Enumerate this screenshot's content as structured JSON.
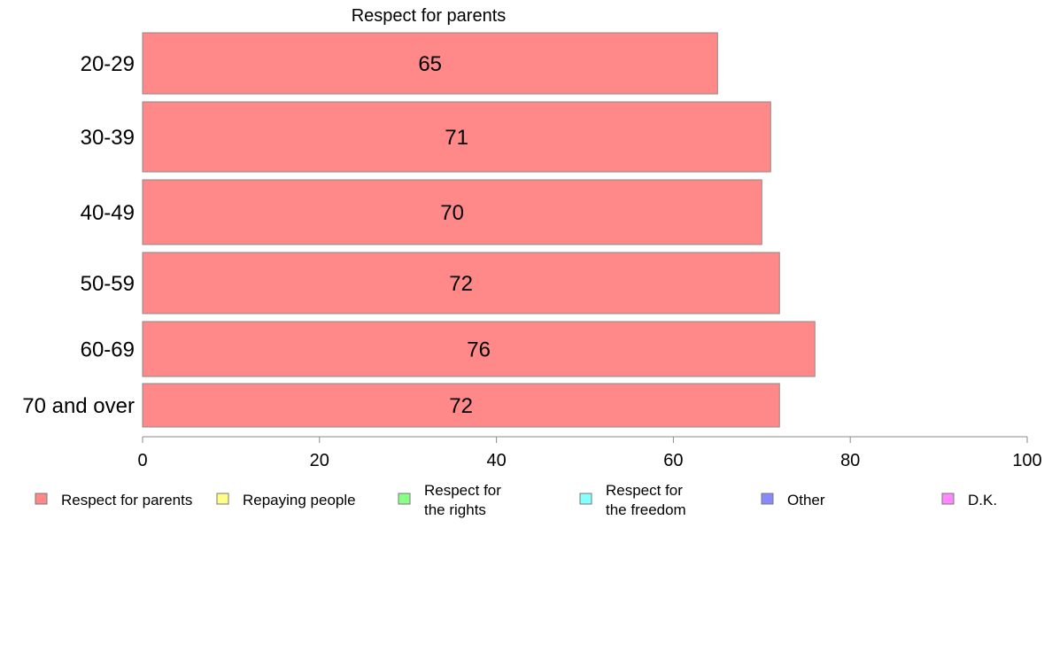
{
  "chart_data": {
    "type": "bar",
    "orientation": "horizontal",
    "title": "Respect for parents",
    "categories": [
      "20-29",
      "30-39",
      "40-49",
      "50-59",
      "60-69",
      "70 and over"
    ],
    "series": [
      {
        "name": "Respect for parents",
        "values": [
          65,
          71,
          70,
          72,
          76,
          72
        ],
        "color": "#ff8888"
      }
    ],
    "xlim": [
      0,
      100
    ],
    "xticks": [
      "0",
      "20",
      "40",
      "60",
      "80",
      "100"
    ],
    "grid": false,
    "legend": {
      "placement": "bottom",
      "entries": [
        {
          "label": [
            "Respect for parents"
          ],
          "color": "#ff8888"
        },
        {
          "label": [
            "Repaying people"
          ],
          "color": "#ffff88"
        },
        {
          "label": [
            "Respect for",
            "the rights"
          ],
          "color": "#88ff88"
        },
        {
          "label": [
            "Respect for",
            "the freedom"
          ],
          "color": "#88ffff"
        },
        {
          "label": [
            "Other"
          ],
          "color": "#8888ff"
        },
        {
          "label": [
            "D.K."
          ],
          "color": "#ff88ff"
        }
      ]
    }
  }
}
